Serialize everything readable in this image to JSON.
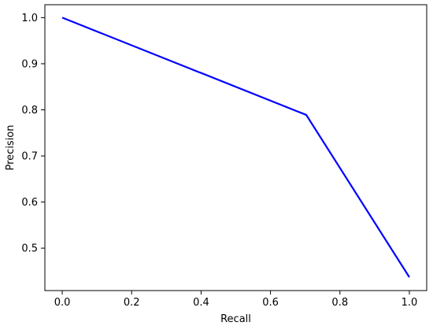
{
  "chart_data": {
    "type": "line",
    "title": "",
    "xlabel": "Recall",
    "ylabel": "Precision",
    "xlim": [
      -0.05,
      1.05
    ],
    "ylim": [
      0.408,
      1.028
    ],
    "x_ticks": [
      0.0,
      0.2,
      0.4,
      0.6,
      0.8,
      1.0
    ],
    "x_tick_labels": [
      "0.0",
      "0.2",
      "0.4",
      "0.6",
      "0.8",
      "1.0"
    ],
    "y_ticks": [
      0.5,
      0.6,
      0.7,
      0.8,
      0.9,
      1.0
    ],
    "y_tick_labels": [
      "0.5",
      "0.6",
      "0.7",
      "0.8",
      "0.9",
      "1.0"
    ],
    "grid": false,
    "series": [
      {
        "color": "#0000ff",
        "x": [
          0.0,
          0.703,
          1.0
        ],
        "y": [
          1.0,
          0.789,
          0.437
        ]
      }
    ]
  }
}
